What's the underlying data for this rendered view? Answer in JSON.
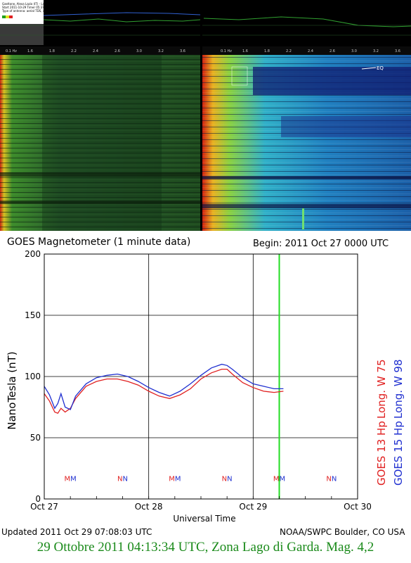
{
  "spectrogram_panel": {
    "header_lines": [
      "Gaeltone, Alexa Lazio (IT) - Lat 45°N, Long 12°E",
      "Start 2011-10-29 Timer 05:37:46 Freq 0 - 6 Hz  Resolution 1 mHz",
      "Type of antenna: aerial TDS, induction coil - Copyright Gaeltone Lazio"
    ],
    "freq_ticks": [
      "0.1 Hz",
      "1.6",
      "1.8",
      "2.2",
      "2.4",
      "2.6",
      "3.0",
      "3.2",
      "3.6"
    ],
    "eq_label": "EQ",
    "colors": {
      "left_base": "#1f4a1d",
      "right_base": "#1a6ea0",
      "hot": "#e02010",
      "warm": "#f0d020",
      "cold": "#10208a"
    }
  },
  "goes": {
    "title": "GOES Magnetometer (1 minute data)",
    "begin": "Begin:  2011 Oct 27 0000 UTC",
    "updated": "Updated 2011 Oct 29 07:08:03 UTC",
    "credit": "NOAA/SWPC Boulder, CO USA"
  },
  "caption": "29 Ottobre 2011 04:13:34 UTC, Zona Lago di Garda. Mag. 4,2",
  "chart_data": {
    "type": "line",
    "ylabel": "NanoTesla (nT)",
    "xlabel": "Universal Time",
    "ylim": [
      0,
      200
    ],
    "yticks": [
      0,
      50,
      100,
      150,
      200
    ],
    "xlim": [
      0,
      3
    ],
    "xticks": [
      0,
      1,
      2,
      3
    ],
    "xtick_labels": [
      "Oct 27",
      "Oct 28",
      "Oct 29",
      "Oct 30"
    ],
    "grid": true,
    "event_marker_day": 2.25,
    "event_marker_color": "#22dd22",
    "series": [
      {
        "name": "GOES 13 Hp",
        "side_label": "Long. W 75",
        "color": "#e02020",
        "x": [
          0.0,
          0.05,
          0.1,
          0.13,
          0.16,
          0.2,
          0.25,
          0.3,
          0.4,
          0.5,
          0.6,
          0.7,
          0.8,
          0.9,
          1.0,
          1.1,
          1.2,
          1.3,
          1.4,
          1.5,
          1.6,
          1.7,
          1.75,
          1.8,
          1.9,
          2.0,
          2.1,
          2.2,
          2.29
        ],
        "values": [
          86,
          80,
          71,
          70,
          74,
          71,
          74,
          82,
          92,
          96,
          98,
          98,
          96,
          93,
          88,
          84,
          82,
          85,
          90,
          98,
          103,
          106,
          106,
          102,
          95,
          91,
          88,
          87,
          88
        ]
      },
      {
        "name": "GOES 15 Hp",
        "side_label": "Long. W 98",
        "color": "#2030d0",
        "x": [
          0.0,
          0.05,
          0.1,
          0.13,
          0.16,
          0.2,
          0.25,
          0.3,
          0.4,
          0.5,
          0.6,
          0.7,
          0.8,
          0.9,
          1.0,
          1.1,
          1.2,
          1.3,
          1.4,
          1.5,
          1.6,
          1.7,
          1.75,
          1.8,
          1.9,
          2.0,
          2.1,
          2.2,
          2.29
        ],
        "values": [
          92,
          85,
          74,
          78,
          86,
          75,
          73,
          84,
          94,
          99,
          101,
          102,
          100,
          96,
          91,
          87,
          84,
          88,
          94,
          101,
          107,
          110,
          109,
          106,
          99,
          94,
          92,
          90,
          90
        ]
      }
    ],
    "annotations": [
      {
        "day": 0.25,
        "text": "MM"
      },
      {
        "day": 0.75,
        "text": "NN"
      },
      {
        "day": 1.25,
        "text": "MM"
      },
      {
        "day": 1.75,
        "text": "NN"
      },
      {
        "day": 2.25,
        "text": "MM"
      },
      {
        "day": 2.75,
        "text": "NN"
      }
    ],
    "annotation_value": 17
  }
}
